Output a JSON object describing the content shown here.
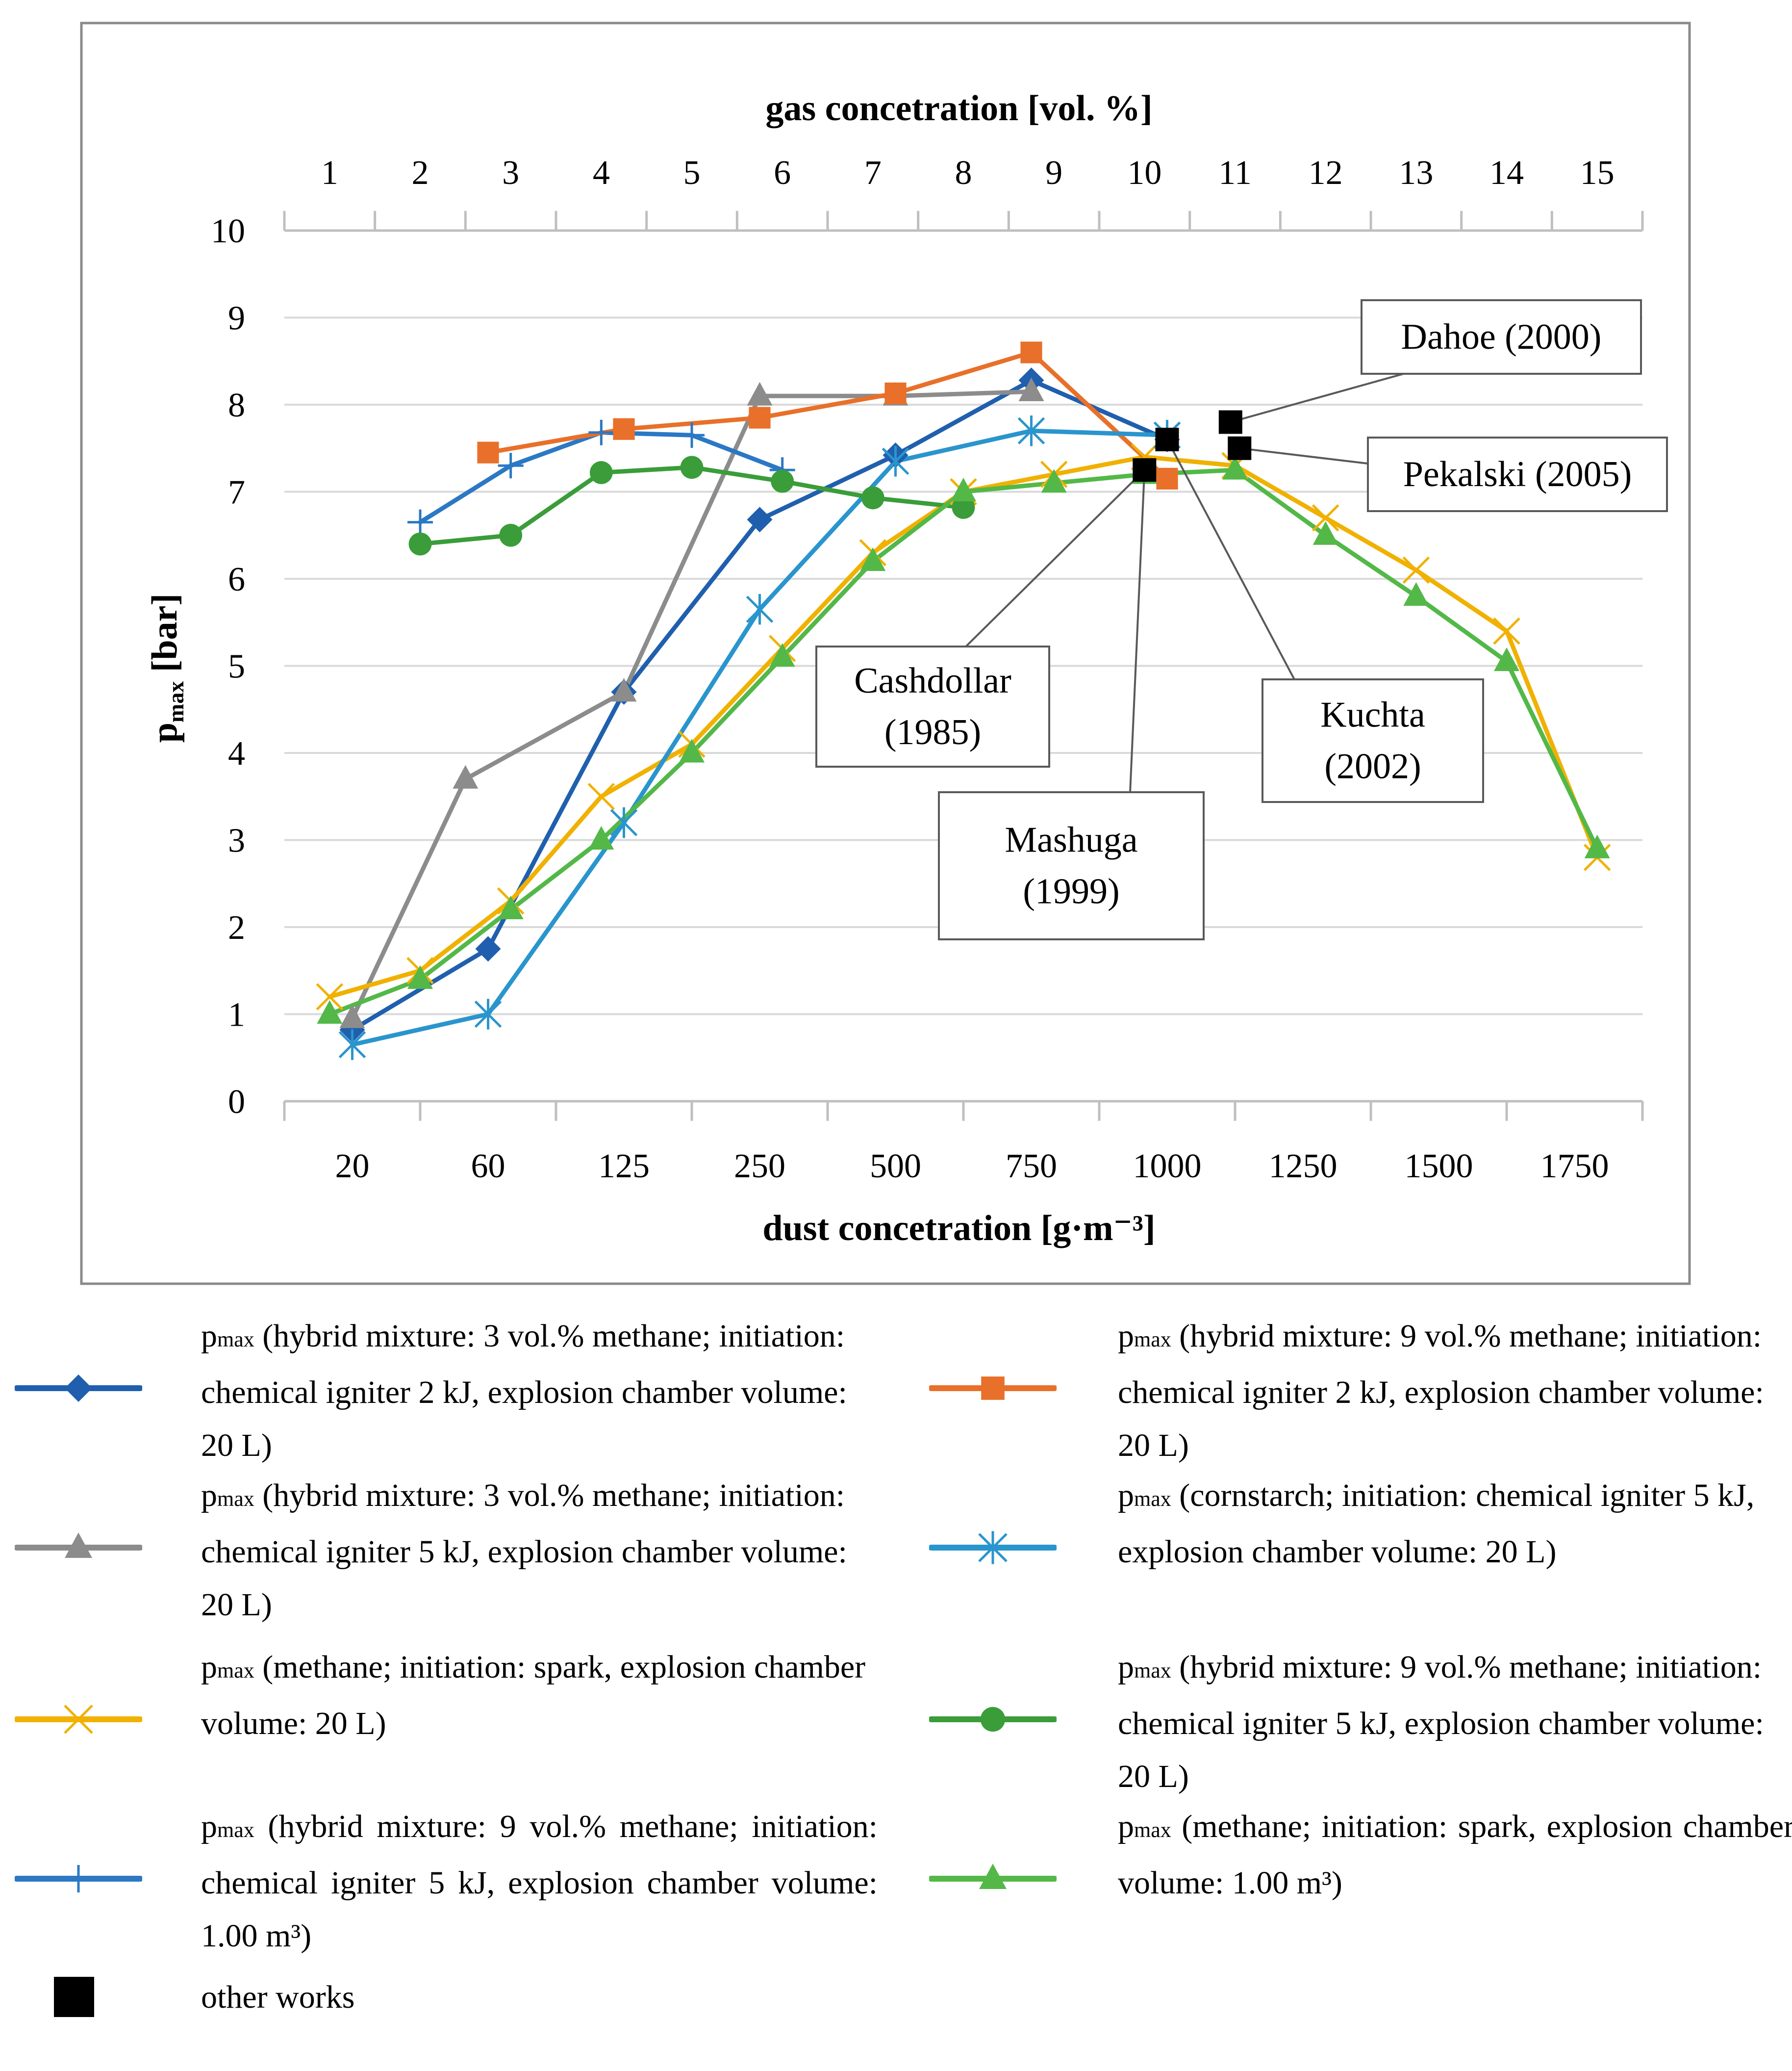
{
  "chart_data": {
    "type": "line",
    "title": "",
    "top_axis": {
      "label": "gas concetration [vol. %]",
      "ticks": [
        "1",
        "2",
        "3",
        "4",
        "5",
        "6",
        "7",
        "8",
        "9",
        "10",
        "11",
        "12",
        "13",
        "14",
        "15"
      ],
      "range": [
        0.5,
        15.5
      ]
    },
    "bottom_axis": {
      "label": "dust concetration [g·m⁻³]",
      "ticks": [
        "20",
        "60",
        "125",
        "250",
        "500",
        "750",
        "1000",
        "1250",
        "1500",
        "1750"
      ],
      "range": [
        0,
        10
      ]
    },
    "y_axis": {
      "label_main": "p",
      "label_sub": "max",
      "label_rest": " [bar]",
      "ticks": [
        "0",
        "1",
        "2",
        "3",
        "4",
        "5",
        "6",
        "7",
        "8",
        "9",
        "10"
      ],
      "range": [
        0,
        10
      ],
      "grid": true
    },
    "series": [
      {
        "id": "s1",
        "name": "hybrid 3% CH4, 2 kJ, 20 L",
        "color": "#1f5fae",
        "marker": "diamond",
        "points": [
          [
            1.25,
            0.82
          ],
          [
            2.75,
            1.75
          ],
          [
            4.25,
            4.7
          ],
          [
            5.75,
            6.68
          ],
          [
            7.25,
            7.42
          ],
          [
            8.75,
            8.28
          ],
          [
            10.25,
            7.6
          ]
        ]
      },
      {
        "id": "s2",
        "name": "hybrid 3% CH4, 5 kJ, 20 L",
        "color": "#8c8c8c",
        "marker": "triangle",
        "points": [
          [
            1.25,
            0.95
          ],
          [
            2.5,
            3.7
          ],
          [
            4.25,
            4.7
          ],
          [
            5.75,
            8.1
          ],
          [
            7.25,
            8.1
          ],
          [
            8.75,
            8.15
          ]
        ]
      },
      {
        "id": "s3",
        "name": "methane, spark, 20 L",
        "color": "#f0b100",
        "marker": "x",
        "points": [
          [
            1,
            1.2
          ],
          [
            2,
            1.5
          ],
          [
            3,
            2.3
          ],
          [
            4,
            3.5
          ],
          [
            5,
            4.1
          ],
          [
            6,
            5.2
          ],
          [
            7,
            6.3
          ],
          [
            8,
            7.0
          ],
          [
            9,
            7.2
          ],
          [
            10,
            7.4
          ],
          [
            11,
            7.3
          ],
          [
            12,
            6.7
          ],
          [
            13,
            6.1
          ],
          [
            14,
            5.4
          ],
          [
            15,
            2.8
          ]
        ]
      },
      {
        "id": "s4",
        "name": "hybrid 9% CH4, 5 kJ, 1.00 m3",
        "color": "#2b78c4",
        "marker": "plus",
        "points": [
          [
            2,
            6.65
          ],
          [
            3,
            7.3
          ],
          [
            4,
            7.68
          ],
          [
            5,
            7.65
          ],
          [
            6,
            7.25
          ]
        ]
      },
      {
        "id": "s5",
        "name": "hybrid 9% CH4, 2 kJ, 20 L",
        "color": "#e8702a",
        "marker": "square",
        "points": [
          [
            2.75,
            7.45
          ],
          [
            4.25,
            7.72
          ],
          [
            5.75,
            7.85
          ],
          [
            7.25,
            8.13
          ],
          [
            8.75,
            8.6
          ],
          [
            10.25,
            7.15
          ]
        ]
      },
      {
        "id": "s6",
        "name": "cornstarch, 5 kJ, 20 L",
        "color": "#2a95cd",
        "marker": "asterisk",
        "points": [
          [
            1.25,
            0.65
          ],
          [
            2.75,
            1.0
          ],
          [
            4.25,
            3.2
          ],
          [
            5.75,
            5.65
          ],
          [
            7.25,
            7.35
          ],
          [
            8.75,
            7.7
          ],
          [
            10.25,
            7.65
          ]
        ]
      },
      {
        "id": "s7",
        "name": "hybrid 9% CH4, 5 kJ, 20 L",
        "color": "#3a9d3a",
        "marker": "circle",
        "points": [
          [
            2,
            6.4
          ],
          [
            3,
            6.5
          ],
          [
            4,
            7.22
          ],
          [
            5,
            7.28
          ],
          [
            6,
            7.12
          ],
          [
            7,
            6.93
          ],
          [
            8,
            6.82
          ]
        ]
      },
      {
        "id": "s8",
        "name": "methane, spark, 1.00 m3",
        "color": "#53b848",
        "marker": "triangle",
        "points": [
          [
            1,
            1.0
          ],
          [
            2,
            1.4
          ],
          [
            3,
            2.2
          ],
          [
            4,
            3.0
          ],
          [
            5,
            4.0
          ],
          [
            6,
            5.1
          ],
          [
            7,
            6.2
          ],
          [
            8,
            7.0
          ],
          [
            9,
            7.1
          ],
          [
            10,
            7.2
          ],
          [
            11,
            7.25
          ],
          [
            12,
            6.5
          ],
          [
            13,
            5.8
          ],
          [
            14,
            5.05
          ],
          [
            15,
            2.9
          ]
        ]
      }
    ],
    "other_works": {
      "color": "#000000",
      "points": [
        [
          10,
          7.25
        ],
        [
          10.25,
          7.6
        ],
        [
          10.95,
          7.8
        ],
        [
          11.05,
          7.5
        ]
      ]
    },
    "annotations": [
      {
        "id": "dahoe",
        "lines": [
          "Dahoe (2000)"
        ]
      },
      {
        "id": "pekalski",
        "lines": [
          "Pekalski (2005)"
        ]
      },
      {
        "id": "cashdollar",
        "lines": [
          "Cashdollar",
          "(1985)"
        ]
      },
      {
        "id": "mashuga",
        "lines": [
          "Mashuga",
          "(1999)"
        ]
      },
      {
        "id": "kuchta",
        "lines": [
          "Kuchta",
          "(2002)"
        ]
      }
    ]
  },
  "legend": {
    "items": [
      {
        "series": "s1",
        "prefix": "p",
        "sub": "max",
        "text": " (hybrid mixture: 3 vol.% methane; initiation: chemical igniter 2 kJ, explosion chamber volume: 20 L)"
      },
      {
        "series": "s5",
        "prefix": "p",
        "sub": "max",
        "text": " (hybrid mixture: 9 vol.% methane; initiation: chemical igniter 2 kJ, explosion chamber volume: 20 L)"
      },
      {
        "series": "s2",
        "prefix": "p",
        "sub": "max",
        "text": " (hybrid mixture: 3 vol.% methane; initiation: chemical igniter 5 kJ, explosion chamber volume: 20 L)"
      },
      {
        "series": "s6",
        "prefix": "p",
        "sub": "max",
        "text": " (cornstarch; initiation: chemical igniter 5 kJ, explosion chamber volume: 20 L)"
      },
      {
        "series": "s3",
        "prefix": "p",
        "sub": "max",
        "text": " (methane; initiation: spark, explosion chamber volume: 20 L)"
      },
      {
        "series": "s7",
        "prefix": "p",
        "sub": "max",
        "text": " (hybrid mixture: 9 vol.% methane; initiation: chemical igniter 5 kJ, explosion chamber volume: 20 L)"
      },
      {
        "series": "s4",
        "prefix": "p",
        "sub": "max",
        "text": " (hybrid mixture: 9 vol.% methane; initiation: chemical igniter 5 kJ, explosion chamber volume: 1.00 m³)"
      },
      {
        "series": "s8",
        "prefix": "p",
        "sub": "max",
        "text": " (methane; initiation: spark, explosion chamber volume: 1.00 m³)"
      }
    ],
    "other_works_label": "other works"
  }
}
